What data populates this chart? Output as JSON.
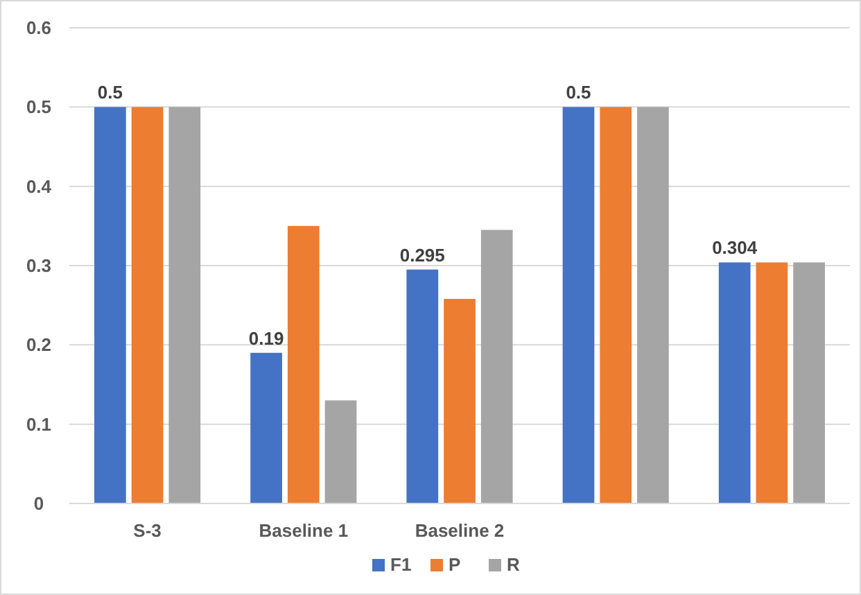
{
  "chart_data": {
    "type": "bar",
    "categories": [
      "S-3",
      "Baseline 1",
      "Baseline 2",
      null,
      null
    ],
    "series": [
      {
        "name": "F1",
        "color": "#4472c4",
        "values": [
          0.5,
          0.19,
          0.295,
          0.5,
          0.304
        ],
        "value_labels": [
          "0.5",
          "0.19",
          "0.295",
          "0.5",
          "0.304"
        ]
      },
      {
        "name": "P",
        "color": "#ed7d31",
        "values": [
          0.5,
          0.35,
          0.258,
          0.5,
          0.304
        ]
      },
      {
        "name": "R",
        "color": "#a5a5a5",
        "values": [
          0.5,
          0.13,
          0.345,
          0.5,
          0.304
        ]
      }
    ],
    "ylim": [
      0,
      0.6
    ],
    "yticks": [
      0,
      0.1,
      0.2,
      0.3,
      0.4,
      0.5,
      0.6
    ],
    "grid": "y",
    "legend": "bottom"
  }
}
